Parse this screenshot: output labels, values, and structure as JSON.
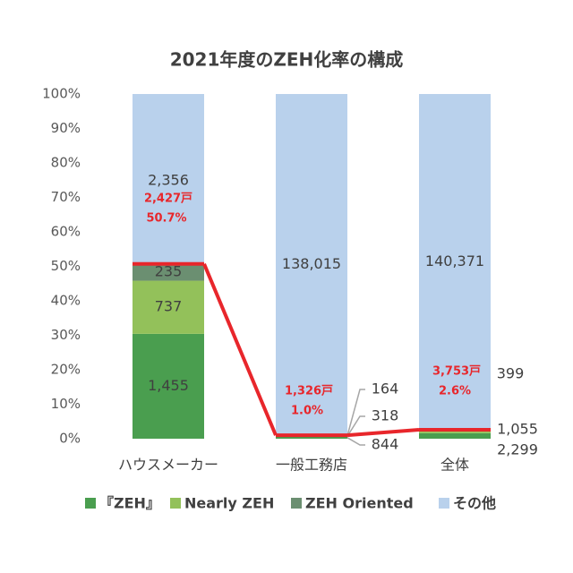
{
  "chart_data": {
    "type": "bar",
    "stacking": "percent",
    "title": "2021年度のZEH化率の構成",
    "categories": [
      "ハウスメーカー",
      "一般工務店",
      "全体"
    ],
    "series": [
      {
        "name": "『ZEH』",
        "color": "#4a9e4f",
        "values": [
          1455,
          844,
          2299
        ],
        "value_labels": [
          "1,455",
          "844",
          "2,299"
        ]
      },
      {
        "name": "Nearly ZEH",
        "color": "#93c15a",
        "values": [
          737,
          318,
          1055
        ],
        "value_labels": [
          "737",
          "318",
          "1,055"
        ]
      },
      {
        "name": "ZEH Oriented",
        "color": "#6b8f71",
        "values": [
          235,
          164,
          399
        ],
        "value_labels": [
          "235",
          "164",
          "399"
        ]
      },
      {
        "name": "その他",
        "color": "#b9d1ec",
        "values": [
          2356,
          138015,
          140371
        ],
        "value_labels": [
          "2,356",
          "138,015",
          "140,371"
        ]
      }
    ],
    "totals": {
      "values": [
        2427,
        1326,
        3753
      ],
      "value_labels": [
        "2,427戸",
        "1,326戸",
        "3,753戸"
      ]
    },
    "share": {
      "color": "#e8262b",
      "values": [
        50.7,
        1.0,
        2.6
      ],
      "value_labels": [
        "50.7%",
        "1.0%",
        "2.6%"
      ]
    },
    "ylim": [
      0,
      100
    ],
    "yticks": [
      {
        "value": 0,
        "label": "0%"
      },
      {
        "value": 10,
        "label": "10%"
      },
      {
        "value": 20,
        "label": "20%"
      },
      {
        "value": 30,
        "label": "30%"
      },
      {
        "value": 40,
        "label": "40%"
      },
      {
        "value": 50,
        "label": "50%"
      },
      {
        "value": 60,
        "label": "60%"
      },
      {
        "value": 70,
        "label": "70%"
      },
      {
        "value": 80,
        "label": "80%"
      },
      {
        "value": 90,
        "label": "90%"
      },
      {
        "value": 100,
        "label": "100%"
      }
    ],
    "legend": "bottom"
  }
}
